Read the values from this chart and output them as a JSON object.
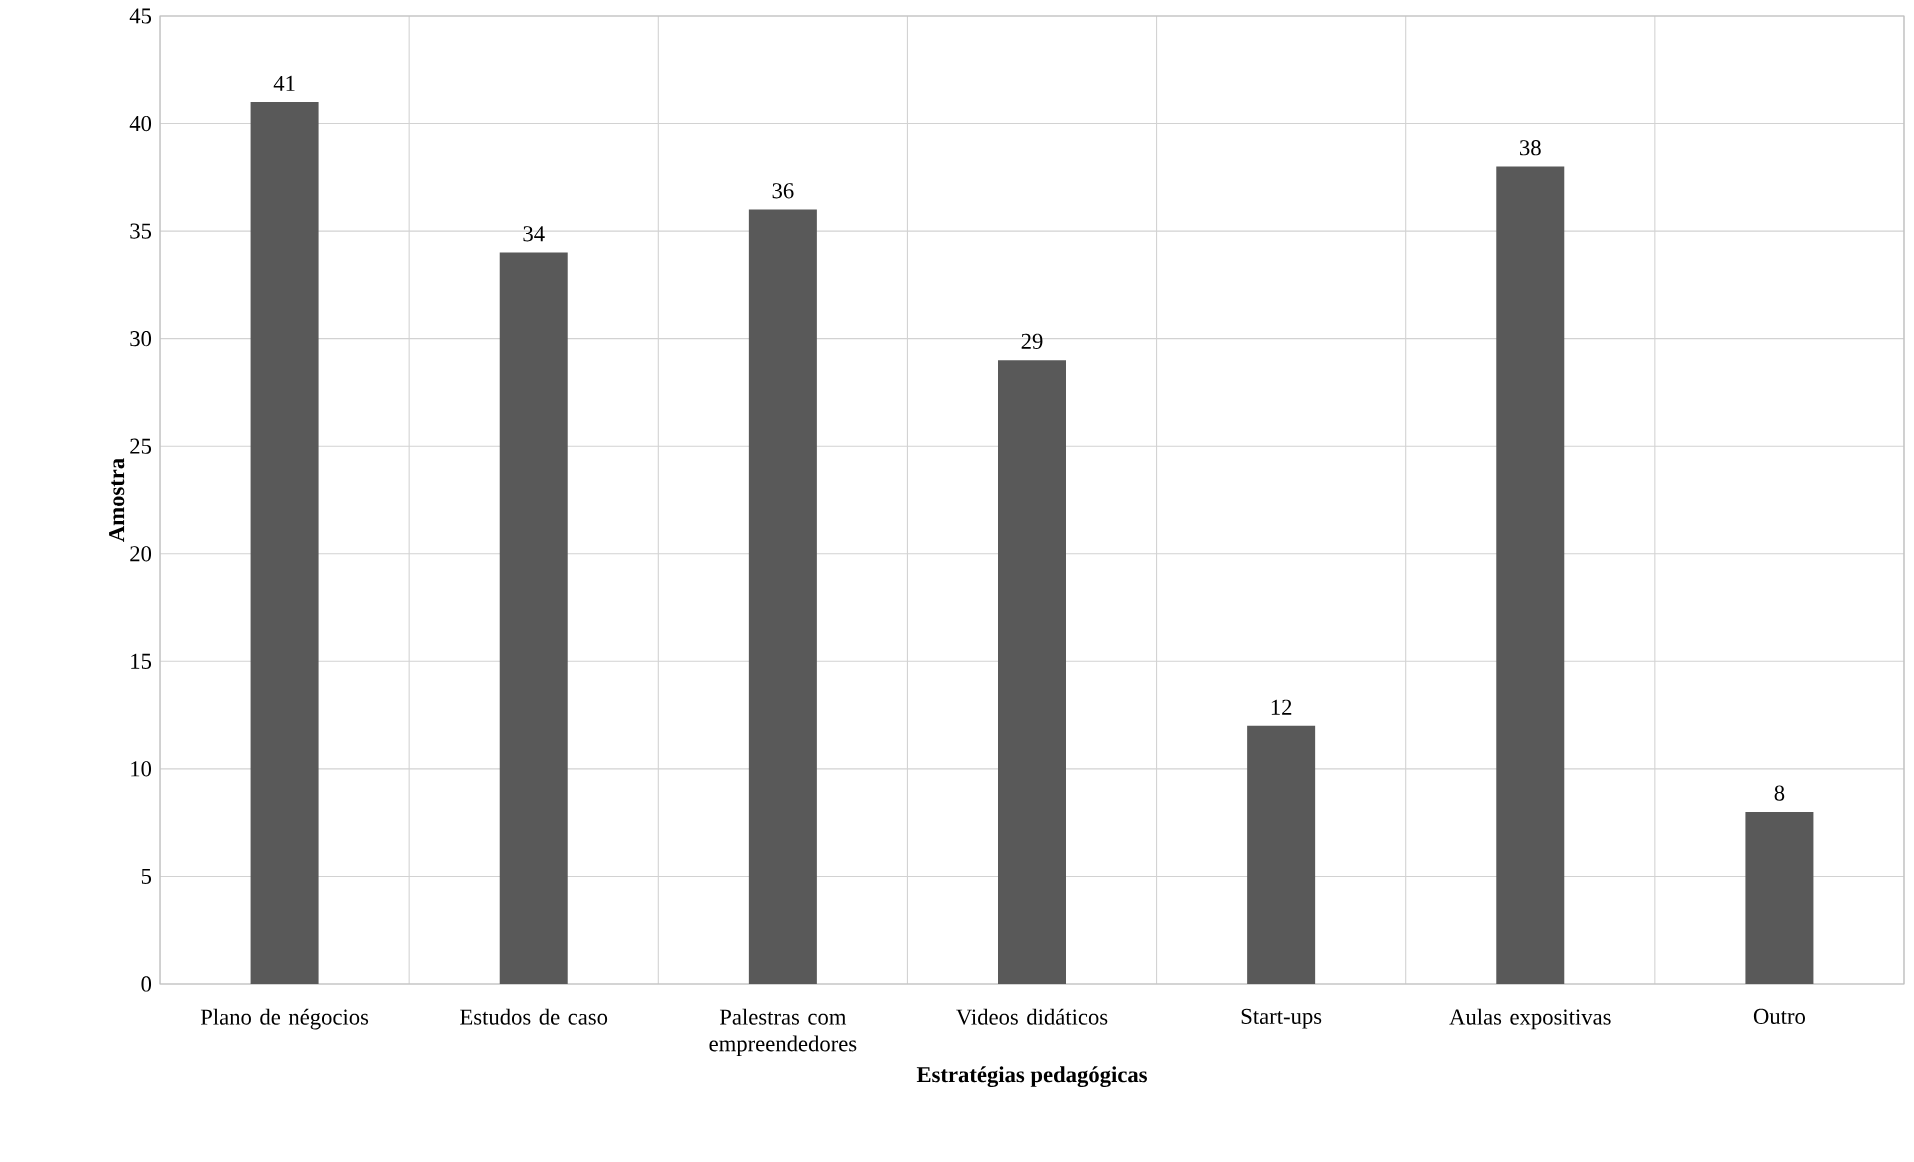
{
  "chart_data": {
    "type": "bar",
    "xlabel": "Estratégias pedagógicas",
    "ylabel": "Amostra",
    "categories": [
      "Plano de négocios",
      "Estudos de caso",
      "Palestras com empreendedores",
      "Videos didáticos",
      "Start-ups",
      "Aulas expositivas",
      "Outro"
    ],
    "values": [
      41,
      34,
      36,
      29,
      12,
      38,
      8
    ],
    "color": "#595959",
    "ylim": [
      0,
      45
    ],
    "yticks": [
      0,
      5,
      10,
      15,
      20,
      25,
      30,
      35,
      40,
      45
    ],
    "grid": true,
    "data_labels": true
  }
}
